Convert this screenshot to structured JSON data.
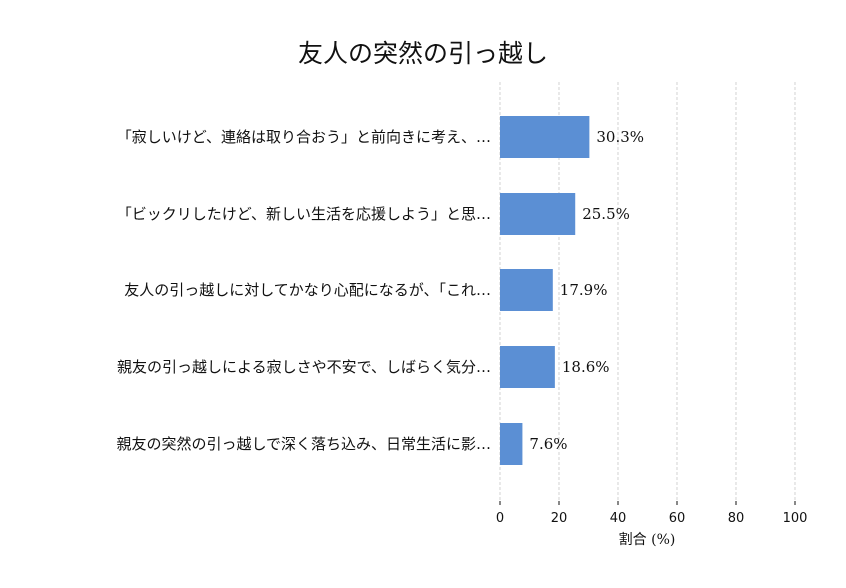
{
  "chart_data": {
    "type": "bar",
    "orientation": "horizontal",
    "title": "友人の突然の引っ越し",
    "xlabel": "割合 (%)",
    "ylabel": "",
    "xlim": [
      0,
      100
    ],
    "x_ticks": [
      "0",
      "20",
      "40",
      "60",
      "80",
      "100"
    ],
    "grid": true,
    "legend": "none",
    "bar_color": "#5b8fd4",
    "categories": [
      "「寂しいけど、連絡は取り合おう」と前向きに考え、…",
      "「ビックリしたけど、新しい生活を応援しよう」と思…",
      "友人の引っ越しに対してかなり心配になるが、「これ…",
      "親友の引っ越しによる寂しさや不安で、しばらく気分…",
      "親友の突然の引っ越しで深く落ち込み、日常生活に影…"
    ],
    "values": [
      30.3,
      25.5,
      17.9,
      18.6,
      7.6
    ],
    "value_labels": [
      "30.3%",
      "25.5%",
      "17.9%",
      "18.6%",
      "7.6%"
    ]
  }
}
